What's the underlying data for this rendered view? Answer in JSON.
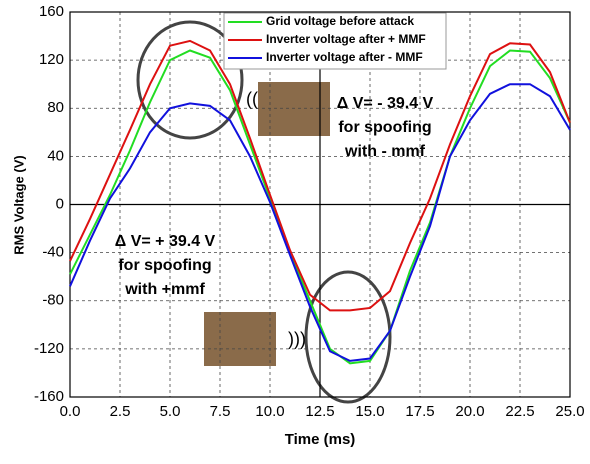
{
  "chart_data": {
    "type": "line",
    "x": [
      0,
      1,
      2,
      3,
      4,
      5,
      6,
      7,
      8,
      9,
      10,
      11,
      12,
      13,
      14,
      15,
      16,
      17,
      18,
      19,
      20,
      21,
      22,
      23,
      24,
      25
    ],
    "series": [
      {
        "name": "Grid voltage before attack",
        "color": "#22dd22",
        "values": [
          -58,
          -25,
          8,
          45,
          85,
          120,
          128,
          122,
          95,
          50,
          5,
          -40,
          -80,
          -120,
          -132,
          -130,
          -105,
          -55,
          -15,
          40,
          80,
          115,
          128,
          127,
          105,
          68
        ]
      },
      {
        "name": "Inverter voltage after + MMF",
        "color": "#dd1111",
        "values": [
          -47,
          -12,
          25,
          62,
          100,
          132,
          136,
          128,
          100,
          55,
          8,
          -38,
          -75,
          -88,
          -88,
          -86,
          -72,
          -32,
          5,
          50,
          90,
          125,
          134,
          133,
          110,
          68
        ]
      },
      {
        "name": "Inverter voltage after - MMF",
        "color": "#1111dd",
        "values": [
          -68,
          -30,
          5,
          30,
          60,
          80,
          84,
          82,
          70,
          40,
          2,
          -42,
          -85,
          -122,
          -130,
          -128,
          -105,
          -60,
          -18,
          40,
          70,
          92,
          100,
          100,
          90,
          62
        ]
      }
    ],
    "xlabel": "Time (ms)",
    "ylabel": "RMS Voltage (V)",
    "xlim": [
      0,
      25
    ],
    "ylim": [
      -160,
      160
    ],
    "xticks": [
      {
        "value": 0,
        "label": "0.0"
      },
      {
        "value": 2.5,
        "label": "2.5"
      },
      {
        "value": 5,
        "label": "5.0"
      },
      {
        "value": 7.5,
        "label": "7.5"
      },
      {
        "value": 10,
        "label": "10.0"
      },
      {
        "value": 12.5,
        "label": "12.5"
      },
      {
        "value": 15,
        "label": "15.0"
      },
      {
        "value": 17.5,
        "label": "17.5"
      },
      {
        "value": 20,
        "label": "20.0"
      },
      {
        "value": 22.5,
        "label": "22.5"
      },
      {
        "value": 25,
        "label": "25.0"
      }
    ],
    "yticks": [
      -160,
      -120,
      -80,
      -40,
      0,
      40,
      80,
      120,
      160
    ],
    "grid": true,
    "annotations": [
      [
        "Δ V= - 39.4 V",
        "for spoofing",
        "with - mmf"
      ],
      [
        "Δ V= + 39.4 V",
        "for spoofing",
        "with +mmf"
      ]
    ]
  }
}
